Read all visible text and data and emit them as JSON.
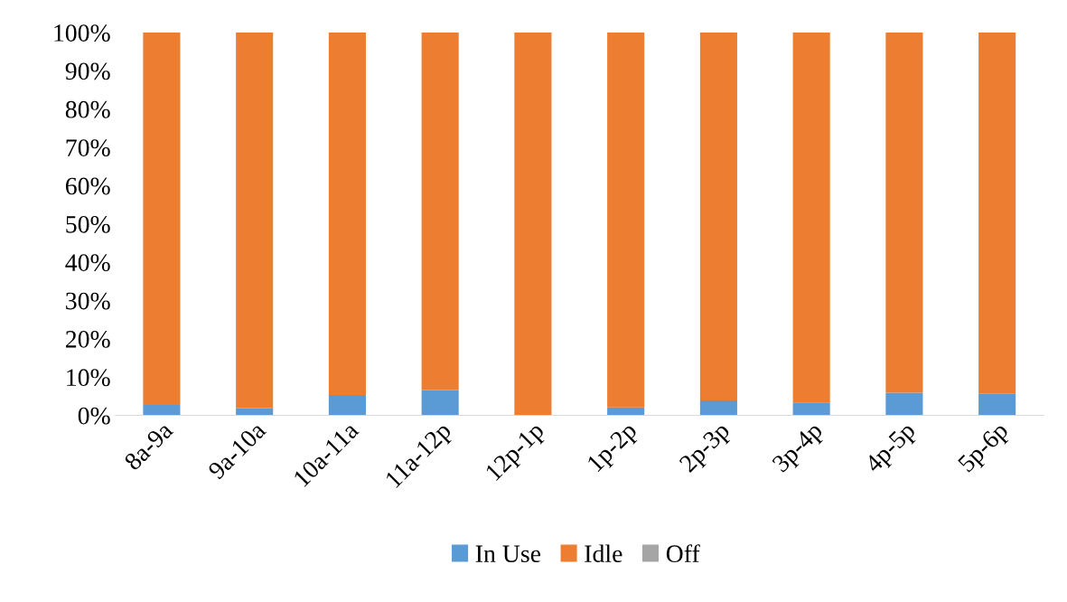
{
  "chart_data": {
    "type": "bar",
    "stacked": true,
    "categories": [
      "8a-9a",
      "9a-10a",
      "10a-11a",
      "11a-12p",
      "12p-1p",
      "1p-2p",
      "2p-3p",
      "3p-4p",
      "4p-5p",
      "5p-6p"
    ],
    "series": [
      {
        "name": "In Use",
        "color": "#5b9bd5",
        "values": [
          2.7,
          1.9,
          5.3,
          6.6,
          0,
          2.1,
          3.9,
          3.4,
          5.9,
          5.6
        ]
      },
      {
        "name": "Idle",
        "color": "#ed7d31",
        "values": [
          97.3,
          98.1,
          94.7,
          93.4,
          100,
          97.9,
          96.1,
          96.6,
          94.1,
          94.4
        ]
      },
      {
        "name": "Off",
        "color": "#a5a5a5",
        "values": [
          0,
          0,
          0,
          0,
          0,
          0,
          0,
          0,
          0,
          0
        ]
      }
    ],
    "ylim": [
      0,
      100
    ],
    "yticks": [
      {
        "value": 0,
        "label": "0%"
      },
      {
        "value": 10,
        "label": "10%"
      },
      {
        "value": 20,
        "label": "20%"
      },
      {
        "value": 30,
        "label": "30%"
      },
      {
        "value": 40,
        "label": "40%"
      },
      {
        "value": 50,
        "label": "50%"
      },
      {
        "value": 60,
        "label": "60%"
      },
      {
        "value": 70,
        "label": "70%"
      },
      {
        "value": 80,
        "label": "80%"
      },
      {
        "value": 90,
        "label": "90%"
      },
      {
        "value": 100,
        "label": "100%"
      }
    ],
    "grid": false,
    "legend": "bottom"
  }
}
